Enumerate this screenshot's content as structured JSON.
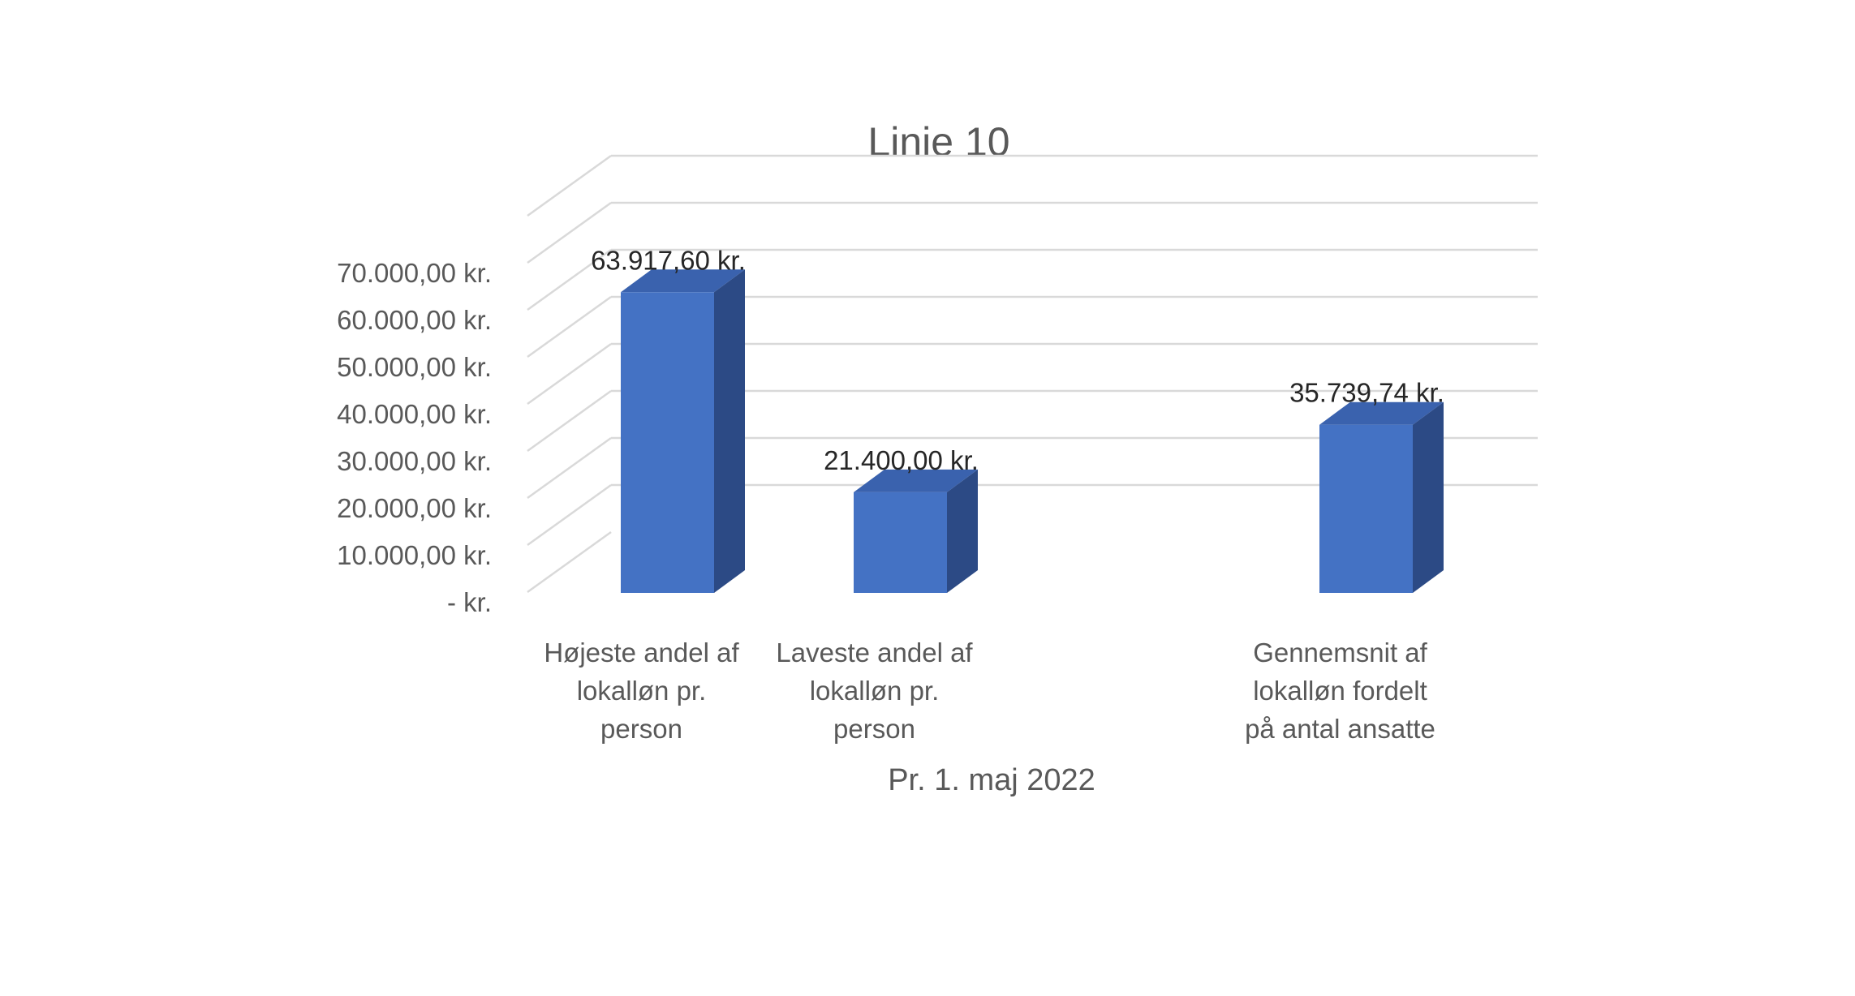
{
  "chart_data": {
    "type": "bar",
    "title": "Linie 10",
    "xlabel": "Pr. 1. maj 2022",
    "ylabel": "",
    "ylim": [
      0,
      70000
    ],
    "yticks": [
      0,
      10000,
      20000,
      30000,
      40000,
      50000,
      60000,
      70000
    ],
    "ytick_labels": [
      "-   kr.",
      "10.000,00 kr.",
      "20.000,00 kr.",
      "30.000,00 kr.",
      "40.000,00 kr.",
      "50.000,00 kr.",
      "60.000,00 kr.",
      "70.000,00 kr."
    ],
    "categories": [
      [
        "Højeste andel af",
        "lokalløn pr.",
        "person"
      ],
      [
        "Laveste andel af",
        "lokalløn pr.",
        "person"
      ],
      [],
      [
        "Gennemsnit af",
        "lokalløn fordelt",
        "på antal ansatte"
      ]
    ],
    "values": [
      63917.6,
      21400.0,
      null,
      35739.74
    ],
    "data_labels": [
      "63.917,60 kr.",
      "21.400,00 kr.",
      "",
      "35.739,74 kr."
    ],
    "grid": true,
    "legend": "none",
    "style": "3d-column",
    "colors": {
      "front": "#4472C4",
      "side": "#2C4A85",
      "top": "#3A62AE",
      "grid": "#D9D9D9"
    }
  }
}
